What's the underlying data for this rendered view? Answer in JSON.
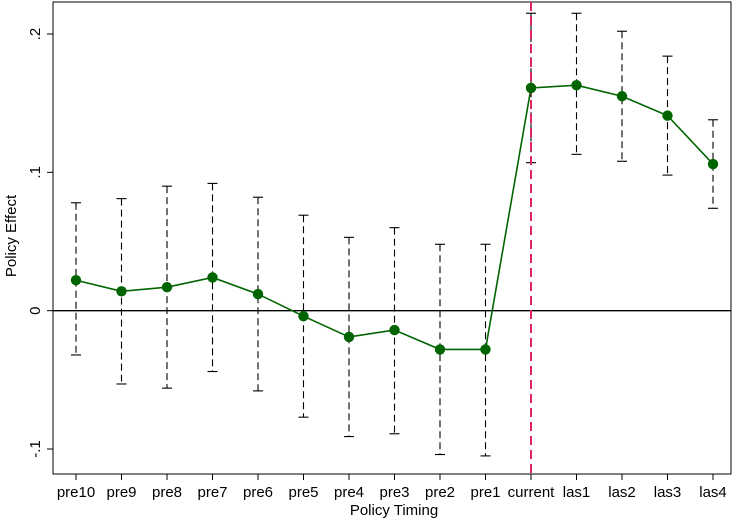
{
  "chart_data": {
    "type": "line",
    "title": "",
    "xlabel": "Policy Timing",
    "ylabel": "Policy Effect",
    "categories": [
      "pre10",
      "pre9",
      "pre8",
      "pre7",
      "pre6",
      "pre5",
      "pre4",
      "pre3",
      "pre2",
      "pre1",
      "current",
      "las1",
      "las2",
      "las3",
      "las4"
    ],
    "series": [
      {
        "values": [
          0.022,
          0.014,
          0.017,
          0.024,
          0.012,
          -0.004,
          -0.019,
          -0.014,
          -0.028,
          -0.028,
          0.161,
          0.163,
          0.155,
          0.141,
          0.106
        ],
        "ci_upper": [
          0.078,
          0.081,
          0.09,
          0.092,
          0.082,
          0.069,
          0.053,
          0.06,
          0.048,
          0.048,
          0.215,
          0.215,
          0.202,
          0.184,
          0.138
        ],
        "ci_lower": [
          -0.032,
          -0.053,
          -0.056,
          -0.044,
          -0.058,
          -0.077,
          -0.091,
          -0.089,
          -0.104,
          -0.105,
          0.107,
          0.113,
          0.108,
          0.098,
          0.074
        ],
        "color": "#006400"
      }
    ],
    "yticks": [
      {
        "value": 0.2,
        "label": ".2"
      },
      {
        "value": 0.1,
        "label": ".1"
      },
      {
        "value": 0,
        "label": "0"
      },
      {
        "value": -0.1,
        "label": "-.1"
      }
    ],
    "ylim": [
      -0.118,
      0.222
    ],
    "reference_line_y": 0,
    "vertical_marker": {
      "category": "current",
      "color": "#e0245e",
      "style": "dashed"
    },
    "ci_style": "dashed",
    "grid": false,
    "legend": "none"
  }
}
